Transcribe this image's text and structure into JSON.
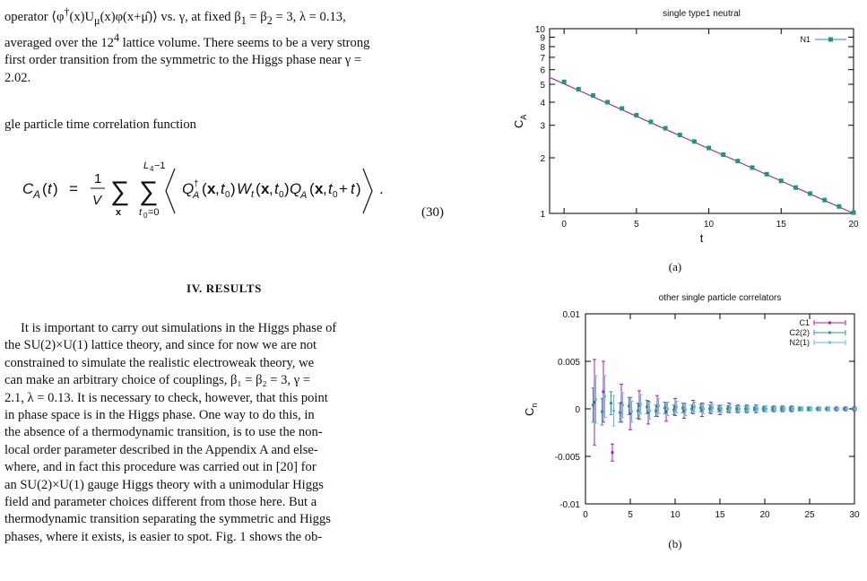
{
  "text": {
    "para1_a": "operator ⟨φ",
    "para1_b": "(x)U",
    "para1_c": "(x)φ(x+μ̂)⟩ vs. γ, at fixed β",
    "para1_d": "= β",
    "para1_e": "= 3, λ = 0.13,",
    "para1_line2_a": "averaged over the 12",
    "para1_line2_b": "lattice volume. There seems to be a very strong",
    "para1_line3": "first order transition from the symmetric to the Higgs phase near γ =",
    "para1_line4": "2.02.",
    "para2": "gle particle time correlation function",
    "eq_number": "(30)",
    "heading": "IV.   RESULTS",
    "results_lines": [
      "It is important to carry out simulations in the Higgs phase of",
      "the SU(2)×U(1) lattice theory, and since for now we are not",
      "constrained to simulate the realistic electroweak theory, we",
      "can make an arbitrary choice of couplings, β₁ = β₂ = 3, γ =",
      "2.1, λ = 0.13. It is necessary to check, however, that this point",
      "in phase space is in the Higgs phase. One way to do this, in",
      "the absence of a thermodynamic transition, is to use the non-",
      "local order parameter described in the Appendix A and else-",
      "where, and in fact this procedure was carried out in [20] for",
      "an SU(2)×U(1) gauge Higgs theory with a unimodular Higgs",
      "field and parameter choices different from those here. But a",
      "thermodynamic transition separating the symmetric and Higgs",
      "phases, where it exists, is easier to spot. Fig. 1 shows the ob-"
    ]
  },
  "colors": {
    "line_fit": "#9b30a0",
    "n1": "#1a9a7a",
    "c1": "#a31fb5",
    "c2": "#2a9f83",
    "n2": "#5bbde8"
  },
  "chart_data": [
    {
      "type": "scatter",
      "title": "single type1 neutral",
      "xlabel": "t",
      "ylabel": "C_A",
      "xlim": [
        -1,
        20
      ],
      "ylim": [
        1,
        10
      ],
      "log_y": true,
      "x_ticks": [
        0,
        5,
        10,
        15,
        20
      ],
      "y_ticks": [
        1,
        2,
        3,
        4,
        5,
        6,
        7,
        8,
        9,
        10
      ],
      "legend": "top-right",
      "caption": "(a)",
      "series": [
        {
          "name": "N1",
          "x": [
            0,
            1,
            2,
            3,
            4,
            5,
            6,
            7,
            8,
            9,
            10,
            11,
            12,
            13,
            14,
            15,
            16,
            17,
            18,
            19,
            20
          ],
          "values": [
            5.15,
            4.7,
            4.35,
            4.0,
            3.7,
            3.4,
            3.13,
            2.89,
            2.66,
            2.45,
            2.26,
            2.08,
            1.92,
            1.77,
            1.63,
            1.5,
            1.38,
            1.28,
            1.18,
            1.09,
            1.01
          ]
        }
      ],
      "fit_line": {
        "x": [
          -1,
          20
        ],
        "values": [
          5.45,
          1.0
        ]
      }
    },
    {
      "type": "scatter",
      "title": "other single particle correlators",
      "xlabel": "t",
      "ylabel": "C_n",
      "xlim": [
        0,
        30
      ],
      "ylim": [
        -0.01,
        0.01
      ],
      "x_ticks": [
        0,
        5,
        10,
        15,
        20,
        25,
        30
      ],
      "y_ticks": [
        -0.01,
        -0.005,
        0,
        0.005,
        0.01
      ],
      "y_tick_labels": [
        "-0.01",
        "-0.005",
        "0",
        "0.005",
        "0.01"
      ],
      "legend": "top-right",
      "caption": "(b)",
      "series": [
        {
          "name": "C1",
          "x": [
            1,
            2,
            3,
            4,
            5,
            6,
            7,
            8,
            9,
            10,
            11,
            12,
            13,
            14,
            15,
            16,
            17,
            18,
            19,
            20,
            21,
            22,
            23,
            24,
            25,
            26,
            27,
            28,
            29,
            30
          ],
          "values": [
            0.0007,
            0.0018,
            -0.0046,
            0.0006,
            -0.0005,
            0.0004,
            -0.0004,
            0.0003,
            -0.0003,
            0.0002,
            -0.0002,
            0.0002,
            -0.0001,
            0.0001,
            -0.0001,
            0.0001,
            0.0,
            0.0,
            0.0,
            0.0,
            0.0,
            0.0,
            0.0,
            0.0,
            0.0,
            0.0,
            0.0,
            0.0,
            0.0,
            0.0
          ],
          "errors": [
            0.0045,
            0.0032,
            0.0009,
            0.002,
            0.0017,
            0.0015,
            0.0012,
            0.0011,
            0.001,
            0.0009,
            0.0008,
            0.0007,
            0.0007,
            0.0006,
            0.0005,
            0.0005,
            0.0004,
            0.0004,
            0.0004,
            0.0003,
            0.0003,
            0.0003,
            0.0003,
            0.0002,
            0.0002,
            0.0002,
            0.0002,
            0.0002,
            0.0002,
            0.0002
          ]
        },
        {
          "name": "C2(2)",
          "x": [
            1,
            2,
            3,
            4,
            5,
            6,
            7,
            8,
            9,
            10,
            11,
            12,
            13,
            14,
            15,
            16,
            17,
            18,
            19,
            20,
            21,
            22,
            23,
            24,
            25,
            26,
            27,
            28,
            29,
            30
          ],
          "values": [
            0.0004,
            -0.0003,
            0.0006,
            -0.0004,
            0.0003,
            -0.0002,
            0.0002,
            -0.0002,
            0.0001,
            -0.0001,
            0.0001,
            0.0,
            0.0001,
            0.0,
            0.0,
            0.0,
            0.0,
            0.0,
            0.0,
            0.0,
            0.0,
            0.0,
            0.0,
            0.0,
            0.0,
            0.0,
            0.0,
            0.0,
            0.0,
            0.0
          ],
          "errors": [
            0.0018,
            0.0014,
            0.0012,
            0.001,
            0.0009,
            0.0008,
            0.0007,
            0.0006,
            0.0006,
            0.0005,
            0.0005,
            0.0004,
            0.0004,
            0.0004,
            0.0003,
            0.0003,
            0.0003,
            0.0003,
            0.0002,
            0.0002,
            0.0002,
            0.0002,
            0.0002,
            0.0002,
            0.0002,
            0.0001,
            0.0001,
            0.0001,
            0.0001,
            0.0001
          ]
        },
        {
          "name": "N2(1)",
          "x": [
            1,
            2,
            3,
            4,
            5,
            6,
            7,
            8,
            9,
            10,
            11,
            12,
            13,
            14,
            15,
            16,
            17,
            18,
            19,
            20,
            21,
            22,
            23,
            24,
            25,
            26,
            27,
            28,
            29,
            30
          ],
          "values": [
            0.001,
            0.0013,
            -0.0002,
            0.0004,
            -0.0003,
            0.0005,
            -0.0002,
            0.0003,
            0.0,
            0.0002,
            -0.0001,
            0.0002,
            0.0,
            0.0001,
            0.0,
            0.0001,
            0.0,
            0.0,
            0.0,
            0.0,
            0.0,
            0.0,
            0.0,
            0.0,
            0.0,
            0.0,
            0.0,
            0.0,
            0.0,
            0.0
          ],
          "errors": [
            0.0025,
            0.0022,
            0.0016,
            0.0013,
            0.0011,
            0.001,
            0.0009,
            0.0008,
            0.0007,
            0.0006,
            0.0006,
            0.0005,
            0.0005,
            0.0004,
            0.0004,
            0.0004,
            0.0003,
            0.0003,
            0.0003,
            0.0003,
            0.0002,
            0.0002,
            0.0002,
            0.0002,
            0.0002,
            0.0002,
            0.0002,
            0.0001,
            0.0001,
            0.0001
          ]
        }
      ]
    }
  ]
}
